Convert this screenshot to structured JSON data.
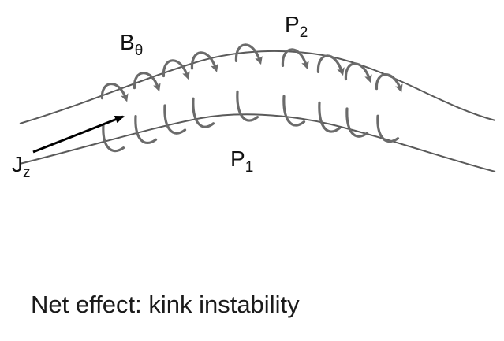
{
  "labels": {
    "b_field": {
      "main": "B",
      "sub": "θ"
    },
    "current": {
      "main": "J",
      "sub": "z"
    },
    "p_outer": {
      "main": "P",
      "sub": "2"
    },
    "p_inner": {
      "main": "P",
      "sub": "1"
    }
  },
  "caption": "Net effect: kink instability",
  "colors": {
    "loop": "#6b6b6b",
    "tube": "#5a5a5a",
    "arrow": "#000000",
    "text": "#111111"
  },
  "icons": {
    "field_loop": "circular-arrow-icon",
    "current_arrow": "straight-arrow-icon"
  }
}
